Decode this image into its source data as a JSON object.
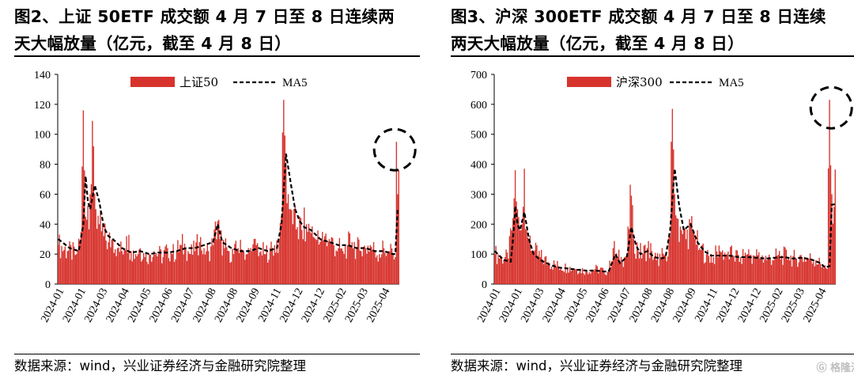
{
  "charts": [
    {
      "title_line1": "图2、上证 50ETF 成交额 4 月 7 日至 8 日连续两",
      "title_line2": "天大幅放量（亿元，截至 4 月 8 日）",
      "source": "数据来源：wind，兴业证券经济与金融研究院整理"
    },
    {
      "title_line1": "图3、沪深 300ETF 成交额 4 月 7 日至 8 日连续",
      "title_line2": "两天大幅放量（亿元，截至 4 月 8 日）",
      "source": "数据来源：wind，兴业证券经济与金融研究院整理"
    }
  ],
  "colors": {
    "bar": "#d7332d",
    "ma": "#000000",
    "axis": "#000000",
    "highlight": "#000000"
  },
  "watermark": "格隆汇",
  "chart_data": [
    {
      "type": "bar",
      "title": "上证 50ETF 成交额（亿元）",
      "legend_position": "top-center",
      "legend": [
        "上证50",
        "MA5"
      ],
      "ylim": [
        0,
        140
      ],
      "yticks": [
        0,
        20,
        40,
        60,
        80,
        100,
        120,
        140
      ],
      "xticks": [
        "2024-01",
        "2024-01",
        "2024-03",
        "2024-04",
        "2024-05",
        "2024-06",
        "2024-07",
        "2024-08",
        "2024-08",
        "2024-09",
        "2024-11",
        "2024-12",
        "2024-12",
        "2025-02",
        "2025-03",
        "2025-04"
      ],
      "series": [
        {
          "name": "上证50",
          "kind": "bar",
          "keypoints": [
            [
              0,
              26
            ],
            [
              8,
              22
            ],
            [
              16,
              20
            ],
            [
              20,
              35
            ],
            [
              22,
              116
            ],
            [
              24,
              45
            ],
            [
              28,
              60
            ],
            [
              31,
              92
            ],
            [
              33,
              50
            ],
            [
              36,
              40
            ],
            [
              40,
              32
            ],
            [
              44,
              28
            ],
            [
              48,
              30
            ],
            [
              52,
              24
            ],
            [
              56,
              22
            ],
            [
              60,
              32
            ],
            [
              64,
              22
            ],
            [
              68,
              20
            ],
            [
              72,
              24
            ],
            [
              76,
              18
            ],
            [
              80,
              20
            ],
            [
              84,
              22
            ],
            [
              88,
              20
            ],
            [
              92,
              18
            ],
            [
              96,
              24
            ],
            [
              100,
              20
            ],
            [
              104,
              22
            ],
            [
              108,
              26
            ],
            [
              112,
              24
            ],
            [
              116,
              20
            ],
            [
              120,
              22
            ],
            [
              124,
              28
            ],
            [
              128,
              24
            ],
            [
              132,
              22
            ],
            [
              136,
              26
            ],
            [
              140,
              42
            ],
            [
              142,
              30
            ],
            [
              146,
              24
            ],
            [
              150,
              22
            ],
            [
              154,
              20
            ],
            [
              158,
              24
            ],
            [
              162,
              22
            ],
            [
              166,
              20
            ],
            [
              170,
              22
            ],
            [
              174,
              26
            ],
            [
              178,
              22
            ],
            [
              182,
              20
            ],
            [
              186,
              24
            ],
            [
              190,
              26
            ],
            [
              194,
              30
            ],
            [
              196,
              45
            ],
            [
              198,
              123
            ],
            [
              200,
              80
            ],
            [
              202,
              60
            ],
            [
              204,
              50
            ],
            [
              206,
              40
            ],
            [
              210,
              38
            ],
            [
              214,
              36
            ],
            [
              218,
              40
            ],
            [
              222,
              34
            ],
            [
              226,
              30
            ],
            [
              230,
              28
            ],
            [
              234,
              32
            ],
            [
              238,
              30
            ],
            [
              242,
              26
            ],
            [
              246,
              24
            ],
            [
              250,
              22
            ],
            [
              254,
              26
            ],
            [
              258,
              28
            ],
            [
              262,
              24
            ],
            [
              266,
              22
            ],
            [
              270,
              24
            ],
            [
              274,
              26
            ],
            [
              278,
              22
            ],
            [
              282,
              20
            ],
            [
              286,
              24
            ],
            [
              290,
              22
            ],
            [
              294,
              20
            ],
            [
              296,
              18
            ],
            [
              297,
              95
            ],
            [
              298,
              60
            ]
          ]
        },
        {
          "name": "MA5",
          "kind": "line",
          "keypoints": [
            [
              0,
              30
            ],
            [
              10,
              24
            ],
            [
              18,
              22
            ],
            [
              22,
              40
            ],
            [
              24,
              72
            ],
            [
              26,
              55
            ],
            [
              28,
              50
            ],
            [
              32,
              66
            ],
            [
              36,
              55
            ],
            [
              40,
              38
            ],
            [
              44,
              32
            ],
            [
              48,
              30
            ],
            [
              56,
              24
            ],
            [
              64,
              21
            ],
            [
              72,
              22
            ],
            [
              80,
              20
            ],
            [
              88,
              21
            ],
            [
              96,
              21
            ],
            [
              104,
              22
            ],
            [
              112,
              24
            ],
            [
              120,
              24
            ],
            [
              128,
              26
            ],
            [
              136,
              28
            ],
            [
              140,
              40
            ],
            [
              144,
              28
            ],
            [
              152,
              24
            ],
            [
              160,
              22
            ],
            [
              168,
              22
            ],
            [
              176,
              24
            ],
            [
              184,
              22
            ],
            [
              192,
              24
            ],
            [
              196,
              40
            ],
            [
              200,
              87
            ],
            [
              204,
              68
            ],
            [
              208,
              50
            ],
            [
              212,
              42
            ],
            [
              216,
              38
            ],
            [
              222,
              36
            ],
            [
              230,
              30
            ],
            [
              238,
              28
            ],
            [
              246,
              26
            ],
            [
              254,
              26
            ],
            [
              262,
              24
            ],
            [
              270,
              24
            ],
            [
              278,
              22
            ],
            [
              286,
              22
            ],
            [
              294,
              20
            ],
            [
              296,
              20
            ],
            [
              298,
              50
            ]
          ]
        }
      ]
    },
    {
      "type": "bar",
      "title": "沪深 300ETF 成交额（亿元）",
      "legend_position": "top-center",
      "legend": [
        "沪深300",
        "MA5"
      ],
      "ylim": [
        0,
        700
      ],
      "yticks": [
        0,
        100,
        200,
        300,
        400,
        500,
        600,
        700
      ],
      "xticks": [
        "2024-01",
        "2024-01",
        "2024-03",
        "2024-04",
        "2024-05",
        "2024-06",
        "2024-07",
        "2024-08",
        "2024-08",
        "2024-09",
        "2024-11",
        "2024-12",
        "2024-12",
        "2025-02",
        "2025-03",
        "2025-04"
      ],
      "series": [
        {
          "name": "沪深300",
          "kind": "bar",
          "keypoints": [
            [
              0,
              100
            ],
            [
              6,
              90
            ],
            [
              12,
              85
            ],
            [
              16,
              220
            ],
            [
              18,
              380
            ],
            [
              20,
              250
            ],
            [
              22,
              180
            ],
            [
              24,
              200
            ],
            [
              26,
              385
            ],
            [
              28,
              180
            ],
            [
              30,
              150
            ],
            [
              34,
              110
            ],
            [
              40,
              90
            ],
            [
              48,
              70
            ],
            [
              56,
              60
            ],
            [
              64,
              55
            ],
            [
              72,
              50
            ],
            [
              80,
              45
            ],
            [
              88,
              50
            ],
            [
              96,
              45
            ],
            [
              100,
              40
            ],
            [
              104,
              120
            ],
            [
              108,
              90
            ],
            [
              112,
              80
            ],
            [
              116,
              100
            ],
            [
              120,
              295
            ],
            [
              122,
              150
            ],
            [
              126,
              110
            ],
            [
              130,
              100
            ],
            [
              134,
              120
            ],
            [
              138,
              110
            ],
            [
              142,
              80
            ],
            [
              146,
              90
            ],
            [
              150,
              100
            ],
            [
              154,
              160
            ],
            [
              156,
              585
            ],
            [
              158,
              300
            ],
            [
              160,
              220
            ],
            [
              164,
              180
            ],
            [
              168,
              150
            ],
            [
              172,
              200
            ],
            [
              176,
              150
            ],
            [
              180,
              120
            ],
            [
              186,
              100
            ],
            [
              192,
              90
            ],
            [
              198,
              110
            ],
            [
              204,
              100
            ],
            [
              210,
              95
            ],
            [
              216,
              90
            ],
            [
              222,
              100
            ],
            [
              228,
              95
            ],
            [
              234,
              90
            ],
            [
              240,
              85
            ],
            [
              246,
              90
            ],
            [
              252,
              95
            ],
            [
              258,
              90
            ],
            [
              264,
              85
            ],
            [
              270,
              90
            ],
            [
              276,
              85
            ],
            [
              282,
              80
            ],
            [
              288,
              60
            ],
            [
              292,
              50
            ],
            [
              294,
              615
            ],
            [
              296,
              300
            ]
          ]
        },
        {
          "name": "MA5",
          "kind": "line",
          "keypoints": [
            [
              0,
              110
            ],
            [
              8,
              80
            ],
            [
              14,
              75
            ],
            [
              16,
              150
            ],
            [
              18,
              260
            ],
            [
              20,
              200
            ],
            [
              22,
              180
            ],
            [
              26,
              240
            ],
            [
              30,
              150
            ],
            [
              34,
              100
            ],
            [
              40,
              80
            ],
            [
              48,
              65
            ],
            [
              56,
              55
            ],
            [
              64,
              52
            ],
            [
              72,
              48
            ],
            [
              80,
              45
            ],
            [
              88,
              45
            ],
            [
              96,
              42
            ],
            [
              100,
              42
            ],
            [
              106,
              100
            ],
            [
              110,
              70
            ],
            [
              116,
              90
            ],
            [
              120,
              190
            ],
            [
              124,
              130
            ],
            [
              128,
              100
            ],
            [
              134,
              110
            ],
            [
              140,
              90
            ],
            [
              146,
              85
            ],
            [
              150,
              90
            ],
            [
              154,
              180
            ],
            [
              158,
              385
            ],
            [
              162,
              260
            ],
            [
              166,
              180
            ],
            [
              172,
              200
            ],
            [
              178,
              140
            ],
            [
              184,
              110
            ],
            [
              190,
              95
            ],
            [
              198,
              95
            ],
            [
              206,
              95
            ],
            [
              214,
              90
            ],
            [
              222,
              90
            ],
            [
              230,
              88
            ],
            [
              238,
              85
            ],
            [
              246,
              88
            ],
            [
              254,
              90
            ],
            [
              262,
              85
            ],
            [
              270,
              88
            ],
            [
              278,
              82
            ],
            [
              286,
              70
            ],
            [
              290,
              55
            ],
            [
              294,
              60
            ],
            [
              296,
              265
            ]
          ]
        }
      ]
    }
  ]
}
